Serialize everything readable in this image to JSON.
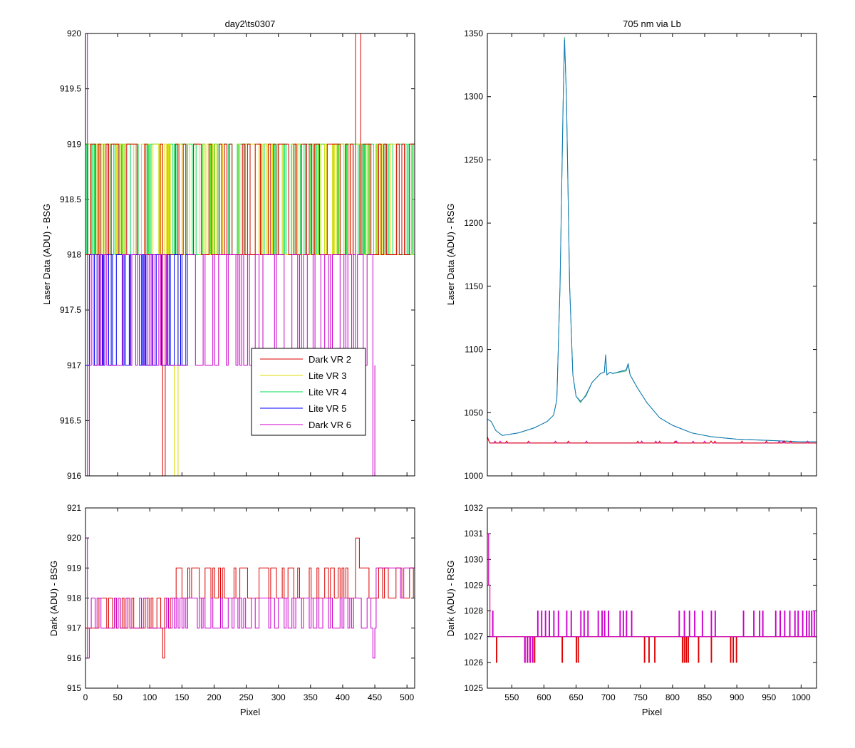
{
  "chart_data": [
    {
      "id": "tl",
      "type": "line",
      "title": "day2\\ts0307",
      "xlabel": "",
      "ylabel": "Laser Data (ADU) - BSG",
      "xlim": [
        0,
        512
      ],
      "ylim": [
        916,
        920
      ],
      "x_ticks": [
        0,
        50,
        100,
        150,
        200,
        250,
        300,
        350,
        400,
        450,
        500
      ],
      "x_tick_labels_visible": false,
      "y_ticks": [
        916,
        916.5,
        917,
        917.5,
        918,
        918.5,
        919,
        919.5,
        920
      ],
      "y_tick_labels": [
        "916",
        "916.5",
        "917",
        "917.5",
        "918",
        "918.5",
        "919",
        "919.5",
        "920"
      ],
      "legend": {
        "placement": "lower-right",
        "entries": [
          "Dark VR 2",
          "Lite VR 3",
          "Lite VR 4",
          "Lite VR 5",
          "Dark VR 6"
        ]
      },
      "series": [
        {
          "name": "Lite VR 4",
          "color": "#00dd55",
          "x_range": [
            0,
            512
          ],
          "levels": [
            918,
            919
          ],
          "spikes": [],
          "step": 2
        },
        {
          "name": "Lite VR 3",
          "color": "#dddd00",
          "x_range": [
            0,
            512
          ],
          "levels": [
            918,
            919
          ],
          "spikes": [
            [
              139,
              916
            ]
          ],
          "step": 3
        },
        {
          "name": "Dark VR 2",
          "color": "#dd0000",
          "x_range": [
            0,
            512
          ],
          "levels": [
            918,
            919
          ],
          "spikes": [
            [
              120,
              916
            ],
            [
              422,
              920
            ]
          ],
          "step": 4
        },
        {
          "name": "Lite VR 5",
          "color": "#0000ff",
          "x_range": [
            0,
            160
          ],
          "levels": [
            917,
            918
          ],
          "spikes": [],
          "step": 2
        },
        {
          "name": "Dark VR 6",
          "color": "#cc00cc",
          "x_range": [
            0,
            452
          ],
          "levels": [
            917,
            918
          ],
          "spikes": [
            [
              1,
              920
            ],
            [
              3,
              916
            ],
            [
              447,
              916
            ]
          ],
          "step": 3
        }
      ]
    },
    {
      "id": "tr",
      "type": "line",
      "title": "705 nm via Lb",
      "xlabel": "",
      "ylabel": "Laser Data (ADU) - RSG",
      "xlim": [
        512,
        1024
      ],
      "ylim": [
        1000,
        1350
      ],
      "x_ticks": [
        550,
        600,
        650,
        700,
        750,
        800,
        850,
        900,
        950,
        1000
      ],
      "x_tick_labels_visible": false,
      "y_ticks": [
        1000,
        1050,
        1100,
        1150,
        1200,
        1250,
        1300,
        1350
      ],
      "y_tick_labels": [
        "1000",
        "1050",
        "1100",
        "1150",
        "1200",
        "1250",
        "1300",
        "1350"
      ],
      "series": [
        {
          "name": "Lite VR 4",
          "color": "#33aa66",
          "points": [
            [
              512,
              1045
            ],
            [
              518,
              1043
            ],
            [
              525,
              1036
            ],
            [
              535,
              1032
            ],
            [
              560,
              1034
            ],
            [
              585,
              1038
            ],
            [
              605,
              1043
            ],
            [
              615,
              1048
            ],
            [
              620,
              1060
            ],
            [
              625,
              1150
            ],
            [
              630,
              1300
            ],
            [
              632,
              1347
            ],
            [
              635,
              1300
            ],
            [
              640,
              1150
            ],
            [
              645,
              1080
            ],
            [
              650,
              1063
            ],
            [
              657,
              1058
            ],
            [
              665,
              1064
            ],
            [
              675,
              1074
            ],
            [
              688,
              1081
            ],
            [
              694,
              1082
            ],
            [
              696,
              1095
            ],
            [
              698,
              1080
            ],
            [
              703,
              1082
            ],
            [
              707,
              1081
            ],
            [
              728,
              1083
            ],
            [
              731,
              1088
            ],
            [
              734,
              1080
            ],
            [
              745,
              1070
            ],
            [
              760,
              1058
            ],
            [
              780,
              1046
            ],
            [
              800,
              1040
            ],
            [
              830,
              1034
            ],
            [
              860,
              1031
            ],
            [
              900,
              1029
            ],
            [
              950,
              1028
            ],
            [
              1000,
              1027
            ],
            [
              1024,
              1027
            ]
          ]
        },
        {
          "name": "Lite VR 5",
          "color": "#1177bb",
          "points": [
            [
              512,
              1045
            ],
            [
              518,
              1043
            ],
            [
              525,
              1036
            ],
            [
              535,
              1032
            ],
            [
              560,
              1034
            ],
            [
              585,
              1038
            ],
            [
              605,
              1043
            ],
            [
              615,
              1048
            ],
            [
              620,
              1060
            ],
            [
              625,
              1150
            ],
            [
              630,
              1300
            ],
            [
              632,
              1345
            ],
            [
              635,
              1300
            ],
            [
              640,
              1150
            ],
            [
              645,
              1080
            ],
            [
              650,
              1063
            ],
            [
              657,
              1059
            ],
            [
              665,
              1063
            ],
            [
              675,
              1074
            ],
            [
              688,
              1081
            ],
            [
              694,
              1082
            ],
            [
              696,
              1096
            ],
            [
              698,
              1080
            ],
            [
              703,
              1082
            ],
            [
              707,
              1081
            ],
            [
              728,
              1084
            ],
            [
              731,
              1089
            ],
            [
              734,
              1080
            ],
            [
              745,
              1070
            ],
            [
              760,
              1058
            ],
            [
              780,
              1046
            ],
            [
              800,
              1040
            ],
            [
              830,
              1034
            ],
            [
              860,
              1031
            ],
            [
              900,
              1029
            ],
            [
              950,
              1028
            ],
            [
              1000,
              1027
            ],
            [
              1024,
              1027
            ]
          ]
        },
        {
          "name": "Dark VR 6",
          "color": "#cc00cc",
          "points": [
            [
              512,
              1031
            ],
            [
              515,
              1027
            ],
            [
              520,
              1026
            ],
            [
              600,
              1026
            ],
            [
              700,
              1026
            ],
            [
              800,
              1026
            ],
            [
              900,
              1026
            ],
            [
              1000,
              1026
            ],
            [
              1024,
              1026
            ]
          ]
        },
        {
          "name": "Dark VR 2",
          "color": "#dd0000",
          "points": [
            [
              512,
              1031
            ],
            [
              515,
              1027
            ],
            [
              520,
              1026
            ],
            [
              1024,
              1026
            ]
          ]
        }
      ]
    },
    {
      "id": "bl",
      "type": "line",
      "title": "",
      "xlabel": "Pixel",
      "ylabel": "Dark (ADU) - BSG",
      "xlim": [
        0,
        512
      ],
      "ylim": [
        915,
        921
      ],
      "x_ticks": [
        0,
        50,
        100,
        150,
        200,
        250,
        300,
        350,
        400,
        450,
        500
      ],
      "x_tick_labels": [
        "0",
        "50",
        "100",
        "150",
        "200",
        "250",
        "300",
        "350",
        "400",
        "450",
        "500"
      ],
      "y_ticks": [
        915,
        916,
        917,
        918,
        919,
        920,
        921
      ],
      "y_tick_labels": [
        "915",
        "916",
        "917",
        "918",
        "919",
        "920",
        "921"
      ],
      "series": [
        {
          "name": "Dark VR 2",
          "color": "#dd0000",
          "segments": [
            [
              0,
              138,
              917,
              918
            ],
            [
              138,
              512,
              918,
              919
            ]
          ],
          "spikes": [
            [
              120,
              916
            ],
            [
              422,
              920
            ]
          ],
          "step": 3
        },
        {
          "name": "Dark VR 6",
          "color": "#cc00cc",
          "segments": [
            [
              0,
              452,
              917,
              918
            ]
          ],
          "spikes": [
            [
              1,
              920
            ],
            [
              3,
              916
            ],
            [
              447,
              916
            ]
          ],
          "step": 3,
          "tail": [
            [
              452,
              919
            ],
            [
              490,
              918
            ],
            [
              495,
              919
            ],
            [
              512,
              919
            ]
          ]
        }
      ]
    },
    {
      "id": "br",
      "type": "line",
      "title": "",
      "xlabel": "Pixel",
      "ylabel": "Dark (ADU) - RSG",
      "xlim": [
        512,
        1024
      ],
      "ylim": [
        1025,
        1032
      ],
      "x_ticks": [
        550,
        600,
        650,
        700,
        750,
        800,
        850,
        900,
        950,
        1000
      ],
      "x_tick_labels": [
        "550",
        "600",
        "650",
        "700",
        "750",
        "800",
        "850",
        "900",
        "950",
        "1000"
      ],
      "y_ticks": [
        1025,
        1026,
        1027,
        1028,
        1029,
        1030,
        1031,
        1032
      ],
      "y_tick_labels": [
        "1025",
        "1026",
        "1027",
        "1028",
        "1029",
        "1030",
        "1031",
        "1032"
      ],
      "series": [
        {
          "name": "Dark VR 2",
          "color": "#dd0000",
          "baseline": 1027,
          "start": [
            [
              512,
              1031
            ],
            [
              514,
              1029
            ],
            [
              516,
              1027
            ]
          ],
          "dips": [
            526,
            570,
            574,
            578,
            582,
            585,
            628,
            650,
            653,
            756,
            763,
            772,
            815,
            818,
            821,
            824,
            840,
            860,
            890,
            894,
            899
          ]
        },
        {
          "name": "Dark VR 6",
          "color": "#cc00cc",
          "baseline": 1027,
          "start": [
            [
              512,
              1031
            ],
            [
              514,
              1029
            ],
            [
              516,
              1027
            ]
          ],
          "dips": [
            570,
            574,
            578,
            582
          ],
          "ups": [
            520,
            590,
            596,
            602,
            608,
            615,
            622,
            635,
            642,
            657,
            662,
            668,
            684,
            690,
            694,
            700,
            718,
            723,
            728,
            736,
            810,
            818,
            826,
            834,
            846,
            860,
            866,
            910,
            926,
            935,
            940,
            960,
            967,
            974,
            982,
            990,
            995,
            1002,
            1008,
            1012,
            1016,
            1020
          ]
        }
      ]
    }
  ]
}
